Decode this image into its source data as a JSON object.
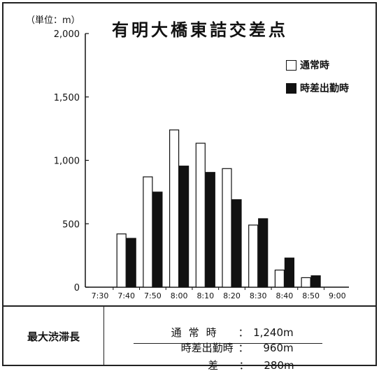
{
  "unit_label": "（単位：m）",
  "chart_data": {
    "type": "bar",
    "title": "有明大橋東詰交差点",
    "categories": [
      "7:30",
      "7:40",
      "7:50",
      "8:00",
      "8:10",
      "8:20",
      "8:30",
      "8:40",
      "8:50",
      "9:00"
    ],
    "y_ticks": [
      "0",
      "500",
      "1,000",
      "1,500",
      "2,000"
    ],
    "ylim": [
      0,
      2000
    ],
    "series": [
      {
        "name": "通常時",
        "color": "#ffffff",
        "values": [
          0,
          420,
          870,
          1240,
          1135,
          935,
          490,
          135,
          75,
          0
        ]
      },
      {
        "name": "時差出勤時",
        "color": "#111111",
        "values": [
          0,
          385,
          750,
          955,
          905,
          690,
          540,
          230,
          90,
          0
        ]
      }
    ],
    "legend_position": "top-right"
  },
  "summary": {
    "label": "最大渋滞長",
    "rows": [
      {
        "label": "通常時",
        "sep": "：",
        "value": "1,240m"
      },
      {
        "label": "時差出勤時",
        "sep": "：",
        "value": "960m"
      },
      {
        "label": "差",
        "sep": "：",
        "value": "280m"
      }
    ]
  }
}
